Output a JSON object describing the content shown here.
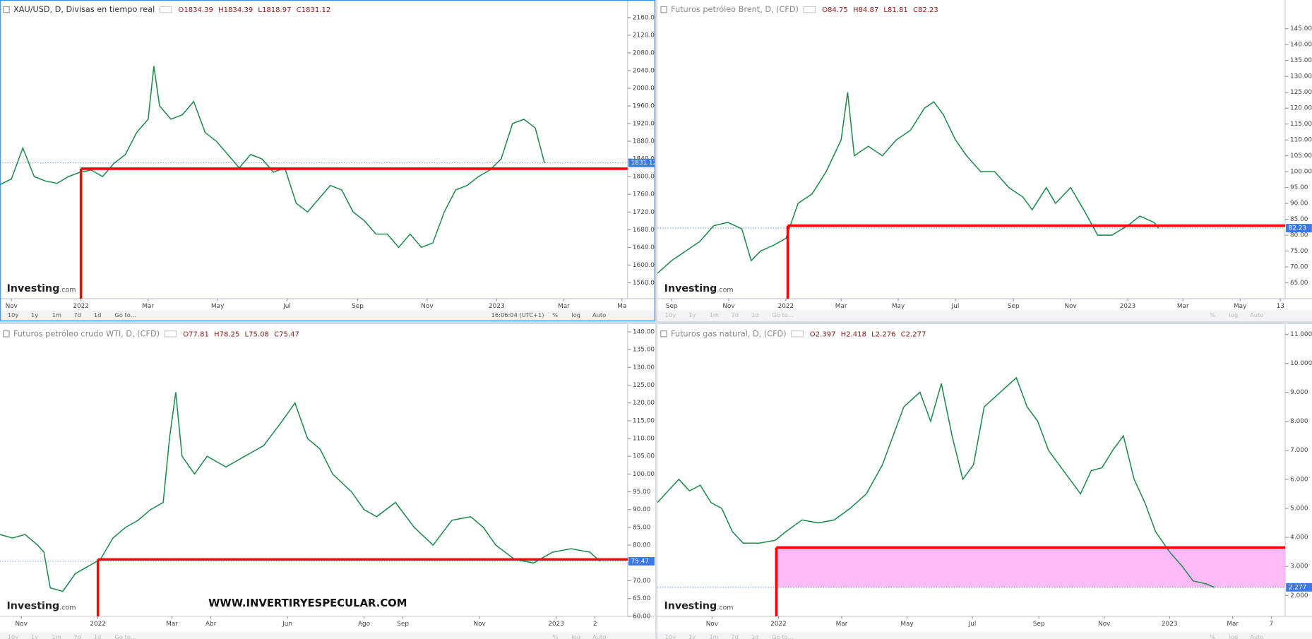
{
  "chart_data": [
    {
      "type": "line",
      "title": "XAU/USD, D, Divisas en tiempo real",
      "ohlc": [
        "O1834.39",
        "H1834.39",
        "L1818.97",
        "C1831.12"
      ],
      "x": [
        0,
        10,
        20,
        30,
        40,
        50,
        60,
        70,
        80,
        90,
        100,
        110,
        120,
        130,
        135,
        140,
        150,
        160,
        170,
        180,
        190,
        200,
        210,
        220,
        230,
        240,
        250,
        260,
        270,
        280,
        290,
        300,
        310,
        320,
        330,
        340,
        350,
        360,
        370,
        380,
        390,
        400,
        410,
        420,
        430,
        440,
        450,
        460,
        470,
        478
      ],
      "series": [
        {
          "name": "XAU/USD",
          "color": "#1f8a4c",
          "values": [
            1782,
            1795,
            1865,
            1800,
            1790,
            1785,
            1800,
            1810,
            1815,
            1800,
            1830,
            1850,
            1900,
            1930,
            2050,
            1960,
            1930,
            1940,
            1970,
            1900,
            1880,
            1850,
            1820,
            1850,
            1840,
            1810,
            1820,
            1740,
            1720,
            1750,
            1780,
            1770,
            1720,
            1700,
            1670,
            1670,
            1640,
            1670,
            1640,
            1650,
            1720,
            1770,
            1780,
            1800,
            1815,
            1840,
            1920,
            1930,
            1910,
            1831.12
          ]
        }
      ],
      "xlim": [
        0,
        551
      ],
      "ylim": [
        1524,
        2192
      ],
      "xticks": [
        {
          "value": 10,
          "label": "Nov"
        },
        {
          "value": 71,
          "label": "2022"
        },
        {
          "value": 130,
          "label": "Mar"
        },
        {
          "value": 191,
          "label": "May"
        },
        {
          "value": 252,
          "label": "Jul"
        },
        {
          "value": 314,
          "label": "Sep"
        },
        {
          "value": 375,
          "label": "Nov"
        },
        {
          "value": 436,
          "label": "2023"
        },
        {
          "value": 495,
          "label": "Mar"
        },
        {
          "value": 546,
          "label": "Ma"
        }
      ],
      "yticks": [
        {
          "value": 1560,
          "label": "1560.00"
        },
        {
          "value": 1600,
          "label": "1600.00"
        },
        {
          "value": 1640,
          "label": "1640.00"
        },
        {
          "value": 1680,
          "label": "1680.00"
        },
        {
          "value": 1720,
          "label": "1720.00"
        },
        {
          "value": 1760,
          "label": "1760.00"
        },
        {
          "value": 1800,
          "label": "1800.00"
        },
        {
          "value": 1840,
          "label": "1840.00"
        },
        {
          "value": 1880,
          "label": "1880.00"
        },
        {
          "value": 1920,
          "label": "1920.00"
        },
        {
          "value": 1960,
          "label": "1960.00"
        },
        {
          "value": 2000,
          "label": "2000.00"
        },
        {
          "value": 2040,
          "label": "2040.00"
        },
        {
          "value": 2080,
          "label": "2080.00"
        },
        {
          "value": 2120,
          "label": "2120.00"
        },
        {
          "value": 2160,
          "label": "2160.00"
        }
      ],
      "last_price": 1831.12,
      "level": {
        "value": 1818,
        "x": 71,
        "color": "#ff0000"
      }
    },
    {
      "type": "line",
      "title": "Futuros petróleo Brent, D, (CFD)",
      "ohlc": [
        "O84.75",
        "H84.87",
        "L81.81",
        "C82.23"
      ],
      "x": [
        0,
        15,
        30,
        45,
        60,
        75,
        90,
        100,
        110,
        125,
        137,
        150,
        165,
        180,
        196,
        203,
        210,
        225,
        240,
        255,
        270,
        285,
        295,
        305,
        318,
        330,
        345,
        360,
        375,
        390,
        400,
        415,
        425,
        441,
        455,
        470,
        485,
        502,
        515,
        530,
        535
      ],
      "series": [
        {
          "name": "Brent",
          "color": "#1f8a4c",
          "values": [
            68,
            72,
            75,
            78,
            83,
            84,
            82,
            72,
            75,
            77,
            79,
            90,
            93,
            100,
            110,
            125,
            105,
            108,
            105,
            110,
            113,
            120,
            122,
            118,
            110,
            105,
            100,
            100,
            95,
            92,
            88,
            95,
            90,
            95,
            88,
            80,
            80,
            83,
            86,
            84,
            82.23
          ]
        }
      ],
      "xlim": [
        0,
        670
      ],
      "ylim": [
        60,
        153
      ],
      "xticks": [
        {
          "value": 15,
          "label": "Sep"
        },
        {
          "value": 76,
          "label": "Nov"
        },
        {
          "value": 137,
          "label": "2022"
        },
        {
          "value": 196,
          "label": "Mar"
        },
        {
          "value": 257,
          "label": "May"
        },
        {
          "value": 318,
          "label": "Jul"
        },
        {
          "value": 380,
          "label": "Sep"
        },
        {
          "value": 441,
          "label": "Nov"
        },
        {
          "value": 502,
          "label": "2023"
        },
        {
          "value": 561,
          "label": "Mar"
        },
        {
          "value": 622,
          "label": "May"
        },
        {
          "value": 665,
          "label": "13"
        }
      ],
      "yticks": [
        {
          "value": 65,
          "label": "65.00"
        },
        {
          "value": 70,
          "label": "70.00"
        },
        {
          "value": 75,
          "label": "75.00"
        },
        {
          "value": 80,
          "label": "80.00"
        },
        {
          "value": 85,
          "label": "85.00"
        },
        {
          "value": 90,
          "label": "90.00"
        },
        {
          "value": 95,
          "label": "95.00"
        },
        {
          "value": 100,
          "label": "100.00"
        },
        {
          "value": 105,
          "label": "105.00"
        },
        {
          "value": 110,
          "label": "110.00"
        },
        {
          "value": 115,
          "label": "115.00"
        },
        {
          "value": 120,
          "label": "120.00"
        },
        {
          "value": 125,
          "label": "125.00"
        },
        {
          "value": 130,
          "label": "130.00"
        },
        {
          "value": 135,
          "label": "135.00"
        },
        {
          "value": 140,
          "label": "140.00"
        },
        {
          "value": 145,
          "label": "145.00"
        }
      ],
      "last_price": 82.23,
      "level": {
        "value": 83,
        "x": 139,
        "color": "#ff0000"
      }
    },
    {
      "type": "line",
      "title": "Futuros petróleo crudo WTI, D, (CFD)",
      "ohlc": [
        "O77.81",
        "H78.25",
        "L75.08",
        "C75.47"
      ],
      "x": [
        0,
        10,
        20,
        30,
        35,
        40,
        50,
        60,
        70,
        80,
        90,
        100,
        110,
        120,
        130,
        135,
        140,
        145,
        155,
        165,
        180,
        195,
        210,
        225,
        235,
        245,
        255,
        265,
        280,
        290,
        300,
        315,
        330,
        345,
        360,
        375,
        385,
        395,
        410,
        425,
        440,
        455,
        470,
        478
      ],
      "series": [
        {
          "name": "WTI",
          "color": "#1f8a4c",
          "values": [
            83,
            82,
            83,
            80,
            78,
            68,
            67,
            72,
            74,
            76,
            82,
            85,
            87,
            90,
            92,
            110,
            123,
            105,
            100,
            105,
            102,
            105,
            108,
            115,
            120,
            110,
            107,
            100,
            95,
            90,
            88,
            92,
            85,
            80,
            87,
            88,
            85,
            80,
            76,
            75,
            78,
            79,
            78,
            75.47
          ]
        }
      ],
      "xlim": [
        0,
        500
      ],
      "ylim": [
        60,
        141.2
      ],
      "xticks": [
        {
          "value": 17,
          "label": "Nov"
        },
        {
          "value": 78,
          "label": "2022"
        },
        {
          "value": 137,
          "label": "Mar"
        },
        {
          "value": 168,
          "label": "Abr"
        },
        {
          "value": 229,
          "label": "Jun"
        },
        {
          "value": 290,
          "label": "Ago"
        },
        {
          "value": 321,
          "label": "Sep"
        },
        {
          "value": 382,
          "label": "Nov"
        },
        {
          "value": 443,
          "label": "2023"
        },
        {
          "value": 474,
          "label": "2"
        }
      ],
      "yticks": [
        {
          "value": 60,
          "label": "60.00"
        },
        {
          "value": 65,
          "label": "65.00"
        },
        {
          "value": 70,
          "label": "70.00"
        },
        {
          "value": 75,
          "label": "75.00"
        },
        {
          "value": 80,
          "label": "80.00"
        },
        {
          "value": 85,
          "label": "85.00"
        },
        {
          "value": 90,
          "label": "90.00"
        },
        {
          "value": 95,
          "label": "95.00"
        },
        {
          "value": 100,
          "label": "100.00"
        },
        {
          "value": 105,
          "label": "105.00"
        },
        {
          "value": 110,
          "label": "110.00"
        },
        {
          "value": 115,
          "label": "115.00"
        },
        {
          "value": 120,
          "label": "120.00"
        },
        {
          "value": 125,
          "label": "125.00"
        },
        {
          "value": 130,
          "label": "130.00"
        },
        {
          "value": 135,
          "label": "135.00"
        },
        {
          "value": 140,
          "label": "140.00"
        }
      ],
      "last_price": 75.47,
      "level": {
        "value": 76,
        "x": 78,
        "color": "#ff0000"
      }
    },
    {
      "type": "line",
      "title": "Futuros gas natural, D, (CFD)",
      "ohlc": [
        "O2.397",
        "H2.418",
        "L2.276",
        "C2.277"
      ],
      "x": [
        0,
        10,
        20,
        30,
        40,
        50,
        60,
        70,
        80,
        95,
        110,
        120,
        135,
        150,
        165,
        180,
        195,
        210,
        220,
        230,
        245,
        255,
        265,
        275,
        285,
        295,
        305,
        320,
        335,
        345,
        355,
        365,
        375,
        385,
        395,
        405,
        415,
        425,
        435,
        445,
        455,
        465,
        478,
        490,
        500,
        512,
        520
      ],
      "series": [
        {
          "name": "Gas natural",
          "color": "#1f8a4c",
          "values": [
            5.2,
            5.6,
            6.0,
            5.6,
            5.8,
            5.2,
            5.0,
            4.2,
            3.8,
            3.8,
            3.9,
            4.2,
            4.6,
            4.5,
            4.6,
            5.0,
            5.5,
            6.5,
            7.5,
            8.5,
            9.0,
            8.0,
            9.3,
            7.5,
            6.0,
            6.5,
            8.5,
            9.0,
            9.5,
            8.5,
            8.0,
            7.0,
            6.5,
            6.0,
            5.5,
            6.3,
            6.4,
            7.0,
            7.5,
            6.0,
            5.2,
            4.2,
            3.5,
            3.0,
            2.5,
            2.4,
            2.277
          ]
        }
      ],
      "xlim": [
        0,
        586
      ],
      "ylim": [
        1.28,
        11.23
      ],
      "xticks": [
        {
          "value": 51,
          "label": "Nov"
        },
        {
          "value": 113,
          "label": "2022"
        },
        {
          "value": 172,
          "label": "Mar"
        },
        {
          "value": 233,
          "label": "May"
        },
        {
          "value": 294,
          "label": "Jul"
        },
        {
          "value": 356,
          "label": "Sep"
        },
        {
          "value": 417,
          "label": "Nov"
        },
        {
          "value": 478,
          "label": "2023"
        },
        {
          "value": 537,
          "label": "Mar"
        },
        {
          "value": 573,
          "label": "7"
        }
      ],
      "yticks": [
        {
          "value": 2,
          "label": "2.000"
        },
        {
          "value": 3,
          "label": "3.000"
        },
        {
          "value": 4,
          "label": "4.000"
        },
        {
          "value": 5,
          "label": "5.000"
        },
        {
          "value": 6,
          "label": "6.000"
        },
        {
          "value": 7,
          "label": "7.000"
        },
        {
          "value": 8,
          "label": "8.000"
        },
        {
          "value": 9,
          "label": "9.000"
        },
        {
          "value": 10,
          "label": "10.000"
        },
        {
          "value": 11,
          "label": "11.000"
        }
      ],
      "last_price": 2.277,
      "level": {
        "value": 3.65,
        "x": 111,
        "color": "#ff0000"
      },
      "zone": {
        "from": 2.277,
        "to": 3.65,
        "x": 111,
        "color": "#ffb3f7"
      }
    }
  ],
  "toolbar": {
    "ranges": [
      "10y",
      "1y",
      "1m",
      "7d",
      "1d",
      "Go to..."
    ],
    "time": "16:06:04 (UTC+1)",
    "scale": [
      "%",
      "log",
      "Auto"
    ]
  },
  "logo": [
    "Investing",
    ".com"
  ],
  "watermark": "WWW.INVERTIRYESPECULAR.COM"
}
